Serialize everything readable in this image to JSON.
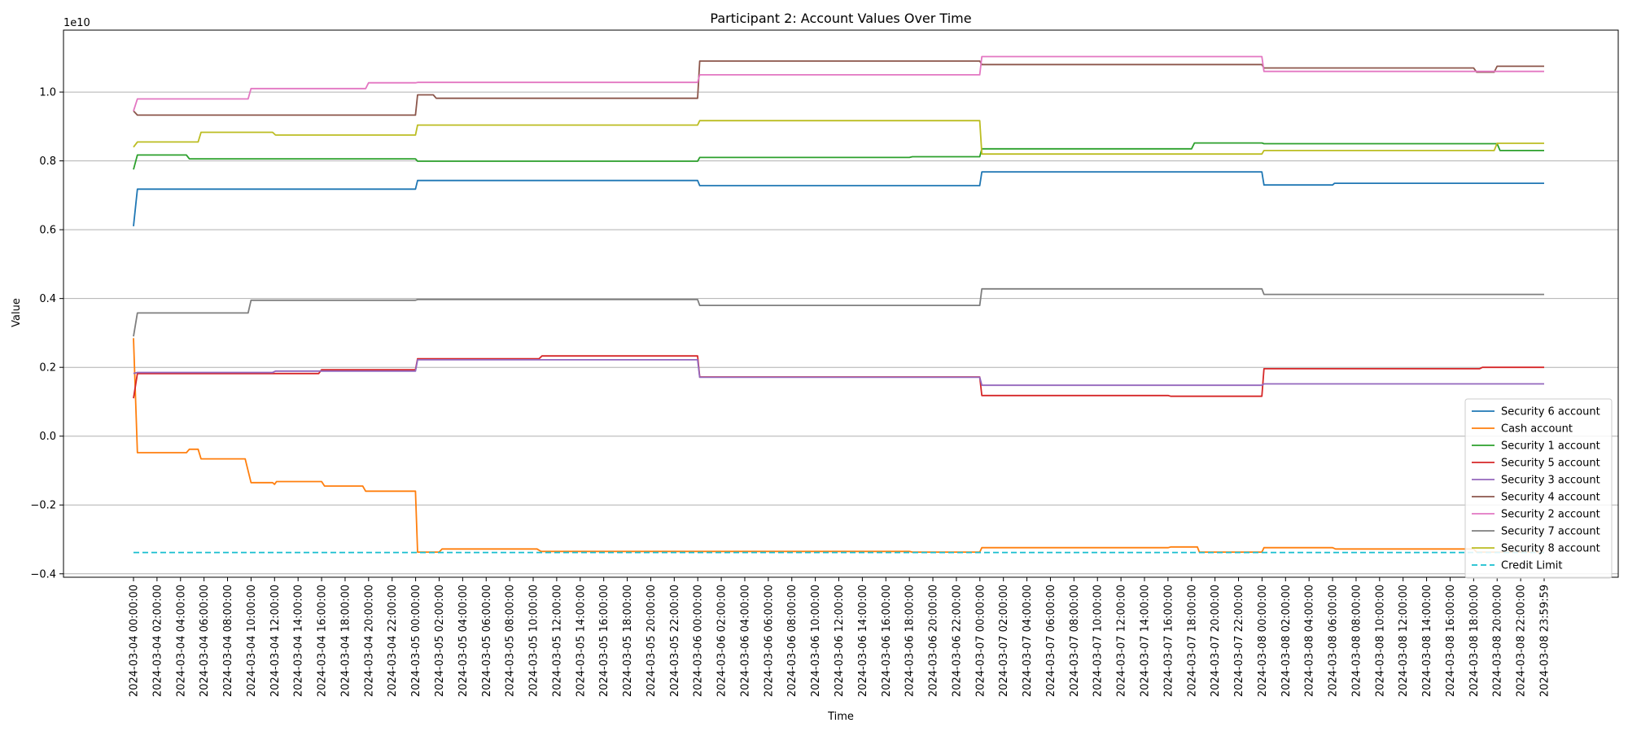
{
  "chart_data": {
    "type": "line",
    "title": "Participant 2: Account Values Over Time",
    "xlabel": "Time",
    "ylabel": "Value",
    "y_offset_label": "1e10",
    "y_unit_scale": 10000000000.0,
    "ylim": [
      -0.41,
      1.18
    ],
    "y_ticks": [
      -0.4,
      -0.2,
      0.0,
      0.2,
      0.4,
      0.6,
      0.8,
      1.0
    ],
    "y_tick_labels": [
      "−0.4",
      "−0.2",
      "0.0",
      "0.2",
      "0.4",
      "0.6",
      "0.8",
      "1.0"
    ],
    "grid": "horizontal",
    "legend_position": "lower-right",
    "x_ticks": [
      "2024-03-04 00:00:00",
      "2024-03-04 02:00:00",
      "2024-03-04 04:00:00",
      "2024-03-04 06:00:00",
      "2024-03-04 08:00:00",
      "2024-03-04 10:00:00",
      "2024-03-04 12:00:00",
      "2024-03-04 14:00:00",
      "2024-03-04 16:00:00",
      "2024-03-04 18:00:00",
      "2024-03-04 20:00:00",
      "2024-03-04 22:00:00",
      "2024-03-05 00:00:00",
      "2024-03-05 02:00:00",
      "2024-03-05 04:00:00",
      "2024-03-05 06:00:00",
      "2024-03-05 08:00:00",
      "2024-03-05 10:00:00",
      "2024-03-05 12:00:00",
      "2024-03-05 14:00:00",
      "2024-03-05 16:00:00",
      "2024-03-05 18:00:00",
      "2024-03-05 20:00:00",
      "2024-03-05 22:00:00",
      "2024-03-06 00:00:00",
      "2024-03-06 02:00:00",
      "2024-03-06 04:00:00",
      "2024-03-06 06:00:00",
      "2024-03-06 08:00:00",
      "2024-03-06 10:00:00",
      "2024-03-06 12:00:00",
      "2024-03-06 14:00:00",
      "2024-03-06 16:00:00",
      "2024-03-06 18:00:00",
      "2024-03-06 20:00:00",
      "2024-03-06 22:00:00",
      "2024-03-07 00:00:00",
      "2024-03-07 02:00:00",
      "2024-03-07 04:00:00",
      "2024-03-07 06:00:00",
      "2024-03-07 08:00:00",
      "2024-03-07 10:00:00",
      "2024-03-07 12:00:00",
      "2024-03-07 14:00:00",
      "2024-03-07 16:00:00",
      "2024-03-07 18:00:00",
      "2024-03-07 20:00:00",
      "2024-03-07 22:00:00",
      "2024-03-08 00:00:00",
      "2024-03-08 02:00:00",
      "2024-03-08 04:00:00",
      "2024-03-08 06:00:00",
      "2024-03-08 08:00:00",
      "2024-03-08 10:00:00",
      "2024-03-08 12:00:00",
      "2024-03-08 14:00:00",
      "2024-03-08 16:00:00",
      "2024-03-08 18:00:00",
      "2024-03-08 20:00:00",
      "2024-03-08 22:00:00",
      "2024-03-08 23:59:59"
    ],
    "series": [
      {
        "name": "Security 6 account",
        "color": "#1f77b4",
        "style": "solid",
        "points": [
          [
            "2024-03-04 00:00:00",
            0.61
          ],
          [
            "2024-03-04 00:20:00",
            0.718
          ],
          [
            "2024-03-04 23:59:00",
            0.718
          ],
          [
            "2024-03-05 00:10:00",
            0.743
          ],
          [
            "2024-03-05 23:59:00",
            0.743
          ],
          [
            "2024-03-06 00:10:00",
            0.728
          ],
          [
            "2024-03-06 23:59:00",
            0.728
          ],
          [
            "2024-03-07 00:10:00",
            0.768
          ],
          [
            "2024-03-07 23:59:00",
            0.768
          ],
          [
            "2024-03-08 00:10:00",
            0.73
          ],
          [
            "2024-03-08 06:00:00",
            0.73
          ],
          [
            "2024-03-08 06:10:00",
            0.735
          ],
          [
            "2024-03-08 23:59:59",
            0.735
          ]
        ]
      },
      {
        "name": "Cash account",
        "color": "#ff7f0e",
        "style": "solid",
        "points": [
          [
            "2024-03-04 00:00:00",
            0.285
          ],
          [
            "2024-03-04 00:20:00",
            -0.048
          ],
          [
            "2024-03-04 04:30:00",
            -0.048
          ],
          [
            "2024-03-04 04:45:00",
            -0.038
          ],
          [
            "2024-03-04 05:30:00",
            -0.038
          ],
          [
            "2024-03-04 05:45:00",
            -0.066
          ],
          [
            "2024-03-04 09:30:00",
            -0.066
          ],
          [
            "2024-03-04 10:00:00",
            -0.135
          ],
          [
            "2024-03-04 11:50:00",
            -0.135
          ],
          [
            "2024-03-04 12:00:00",
            -0.14
          ],
          [
            "2024-03-04 12:10:00",
            -0.132
          ],
          [
            "2024-03-04 16:00:00",
            -0.132
          ],
          [
            "2024-03-04 16:15:00",
            -0.145
          ],
          [
            "2024-03-04 19:30:00",
            -0.145
          ],
          [
            "2024-03-04 19:45:00",
            -0.16
          ],
          [
            "2024-03-04 23:59:00",
            -0.16
          ],
          [
            "2024-03-05 00:10:00",
            -0.337
          ],
          [
            "2024-03-05 02:00:00",
            -0.337
          ],
          [
            "2024-03-05 02:15:00",
            -0.328
          ],
          [
            "2024-03-05 10:20:00",
            -0.328
          ],
          [
            "2024-03-05 10:40:00",
            -0.335
          ],
          [
            "2024-03-06 18:00:00",
            -0.335
          ],
          [
            "2024-03-06 18:15:00",
            -0.337
          ],
          [
            "2024-03-06 23:59:00",
            -0.337
          ],
          [
            "2024-03-07 00:10:00",
            -0.324
          ],
          [
            "2024-03-07 16:00:00",
            -0.324
          ],
          [
            "2024-03-07 16:15:00",
            -0.322
          ],
          [
            "2024-03-07 18:30:00",
            -0.322
          ],
          [
            "2024-03-07 18:40:00",
            -0.337
          ],
          [
            "2024-03-07 23:59:00",
            -0.337
          ],
          [
            "2024-03-08 00:10:00",
            -0.324
          ],
          [
            "2024-03-08 06:00:00",
            -0.324
          ],
          [
            "2024-03-08 06:15:00",
            -0.328
          ],
          [
            "2024-03-08 18:00:00",
            -0.328
          ],
          [
            "2024-03-08 18:15:00",
            -0.337
          ],
          [
            "2024-03-08 23:59:59",
            -0.337
          ]
        ]
      },
      {
        "name": "Security 1 account",
        "color": "#2ca02c",
        "style": "solid",
        "points": [
          [
            "2024-03-04 00:00:00",
            0.775
          ],
          [
            "2024-03-04 00:20:00",
            0.817
          ],
          [
            "2024-03-04 04:30:00",
            0.817
          ],
          [
            "2024-03-04 04:45:00",
            0.806
          ],
          [
            "2024-03-04 23:59:00",
            0.806
          ],
          [
            "2024-03-05 00:10:00",
            0.799
          ],
          [
            "2024-03-05 23:59:00",
            0.799
          ],
          [
            "2024-03-06 00:10:00",
            0.81
          ],
          [
            "2024-03-06 18:00:00",
            0.81
          ],
          [
            "2024-03-06 18:15:00",
            0.812
          ],
          [
            "2024-03-06 23:59:00",
            0.812
          ],
          [
            "2024-03-07 00:10:00",
            0.835
          ],
          [
            "2024-03-07 18:00:00",
            0.835
          ],
          [
            "2024-03-07 18:15:00",
            0.852
          ],
          [
            "2024-03-08 00:00:00",
            0.852
          ],
          [
            "2024-03-08 00:10:00",
            0.85
          ],
          [
            "2024-03-08 20:00:00",
            0.85
          ],
          [
            "2024-03-08 20:15:00",
            0.83
          ],
          [
            "2024-03-08 23:59:59",
            0.83
          ]
        ]
      },
      {
        "name": "Security 5 account",
        "color": "#d62728",
        "style": "solid",
        "points": [
          [
            "2024-03-04 00:00:00",
            0.11
          ],
          [
            "2024-03-04 00:20:00",
            0.182
          ],
          [
            "2024-03-04 15:45:00",
            0.182
          ],
          [
            "2024-03-04 16:00:00",
            0.193
          ],
          [
            "2024-03-04 23:59:00",
            0.193
          ],
          [
            "2024-03-05 00:10:00",
            0.225
          ],
          [
            "2024-03-05 10:30:00",
            0.225
          ],
          [
            "2024-03-05 10:45:00",
            0.233
          ],
          [
            "2024-03-05 23:59:00",
            0.233
          ],
          [
            "2024-03-06 00:10:00",
            0.172
          ],
          [
            "2024-03-06 23:59:00",
            0.172
          ],
          [
            "2024-03-07 00:10:00",
            0.118
          ],
          [
            "2024-03-07 16:00:00",
            0.118
          ],
          [
            "2024-03-07 16:15:00",
            0.116
          ],
          [
            "2024-03-07 23:59:00",
            0.116
          ],
          [
            "2024-03-08 00:10:00",
            0.196
          ],
          [
            "2024-03-08 18:30:00",
            0.196
          ],
          [
            "2024-03-08 18:45:00",
            0.2
          ],
          [
            "2024-03-08 23:59:59",
            0.2
          ]
        ]
      },
      {
        "name": "Security 3 account",
        "color": "#9467bd",
        "style": "solid",
        "points": [
          [
            "2024-03-04 00:00:00",
            0.182
          ],
          [
            "2024-03-04 00:20:00",
            0.185
          ],
          [
            "2024-03-04 11:50:00",
            0.185
          ],
          [
            "2024-03-04 12:05:00",
            0.189
          ],
          [
            "2024-03-04 23:59:00",
            0.189
          ],
          [
            "2024-03-05 00:10:00",
            0.222
          ],
          [
            "2024-03-05 23:59:00",
            0.222
          ],
          [
            "2024-03-06 00:10:00",
            0.171
          ],
          [
            "2024-03-06 23:59:00",
            0.171
          ],
          [
            "2024-03-07 00:10:00",
            0.148
          ],
          [
            "2024-03-07 23:59:00",
            0.148
          ],
          [
            "2024-03-08 00:10:00",
            0.152
          ],
          [
            "2024-03-08 23:59:59",
            0.152
          ]
        ]
      },
      {
        "name": "Security 4 account",
        "color": "#8c564b",
        "style": "solid",
        "points": [
          [
            "2024-03-04 00:00:00",
            0.945
          ],
          [
            "2024-03-04 00:20:00",
            0.933
          ],
          [
            "2024-03-04 23:59:00",
            0.933
          ],
          [
            "2024-03-05 00:10:00",
            0.992
          ],
          [
            "2024-03-05 01:30:00",
            0.992
          ],
          [
            "2024-03-05 01:45:00",
            0.982
          ],
          [
            "2024-03-05 23:59:00",
            0.982
          ],
          [
            "2024-03-06 00:10:00",
            1.09
          ],
          [
            "2024-03-06 23:59:00",
            1.09
          ],
          [
            "2024-03-07 00:10:00",
            1.08
          ],
          [
            "2024-03-07 23:59:00",
            1.08
          ],
          [
            "2024-03-08 00:10:00",
            1.07
          ],
          [
            "2024-03-08 18:00:00",
            1.07
          ],
          [
            "2024-03-08 18:15:00",
            1.058
          ],
          [
            "2024-03-08 19:45:00",
            1.058
          ],
          [
            "2024-03-08 20:00:00",
            1.075
          ],
          [
            "2024-03-08 23:59:59",
            1.075
          ]
        ]
      },
      {
        "name": "Security 2 account",
        "color": "#e377c2",
        "style": "solid",
        "points": [
          [
            "2024-03-04 00:00:00",
            0.945
          ],
          [
            "2024-03-04 00:20:00",
            0.98
          ],
          [
            "2024-03-04 09:45:00",
            0.98
          ],
          [
            "2024-03-04 10:00:00",
            1.01
          ],
          [
            "2024-03-04 19:45:00",
            1.01
          ],
          [
            "2024-03-04 20:00:00",
            1.027
          ],
          [
            "2024-03-04 23:59:00",
            1.027
          ],
          [
            "2024-03-05 00:10:00",
            1.028
          ],
          [
            "2024-03-05 23:59:00",
            1.028
          ],
          [
            "2024-03-06 00:10:00",
            1.05
          ],
          [
            "2024-03-06 23:59:00",
            1.05
          ],
          [
            "2024-03-07 00:10:00",
            1.103
          ],
          [
            "2024-03-07 23:59:00",
            1.103
          ],
          [
            "2024-03-08 00:10:00",
            1.06
          ],
          [
            "2024-03-08 23:59:59",
            1.06
          ]
        ]
      },
      {
        "name": "Security 7 account",
        "color": "#7f7f7f",
        "style": "solid",
        "points": [
          [
            "2024-03-04 00:00:00",
            0.29
          ],
          [
            "2024-03-04 00:20:00",
            0.358
          ],
          [
            "2024-03-04 09:45:00",
            0.358
          ],
          [
            "2024-03-04 10:00:00",
            0.395
          ],
          [
            "2024-03-04 23:59:00",
            0.395
          ],
          [
            "2024-03-05 00:10:00",
            0.397
          ],
          [
            "2024-03-05 23:59:00",
            0.397
          ],
          [
            "2024-03-06 00:10:00",
            0.38
          ],
          [
            "2024-03-06 23:59:00",
            0.38
          ],
          [
            "2024-03-07 00:10:00",
            0.428
          ],
          [
            "2024-03-07 23:59:00",
            0.428
          ],
          [
            "2024-03-08 00:10:00",
            0.412
          ],
          [
            "2024-03-08 23:59:59",
            0.412
          ]
        ]
      },
      {
        "name": "Security 8 account",
        "color": "#bcbd22",
        "style": "solid",
        "points": [
          [
            "2024-03-04 00:00:00",
            0.84
          ],
          [
            "2024-03-04 00:20:00",
            0.855
          ],
          [
            "2024-03-04 05:30:00",
            0.855
          ],
          [
            "2024-03-04 05:45:00",
            0.883
          ],
          [
            "2024-03-04 11:50:00",
            0.883
          ],
          [
            "2024-03-04 12:05:00",
            0.875
          ],
          [
            "2024-03-04 23:59:00",
            0.875
          ],
          [
            "2024-03-05 00:10:00",
            0.904
          ],
          [
            "2024-03-05 23:59:00",
            0.904
          ],
          [
            "2024-03-06 00:10:00",
            0.917
          ],
          [
            "2024-03-06 23:59:00",
            0.917
          ],
          [
            "2024-03-07 00:10:00",
            0.82
          ],
          [
            "2024-03-07 23:59:00",
            0.82
          ],
          [
            "2024-03-08 00:10:00",
            0.83
          ],
          [
            "2024-03-08 19:45:00",
            0.83
          ],
          [
            "2024-03-08 20:00:00",
            0.851
          ],
          [
            "2024-03-08 23:59:59",
            0.851
          ]
        ]
      },
      {
        "name": "Credit Limit",
        "color": "#17becf",
        "style": "dashed",
        "points": [
          [
            "2024-03-04 00:00:00",
            -0.338
          ],
          [
            "2024-03-08 23:59:59",
            -0.338
          ]
        ]
      }
    ]
  }
}
